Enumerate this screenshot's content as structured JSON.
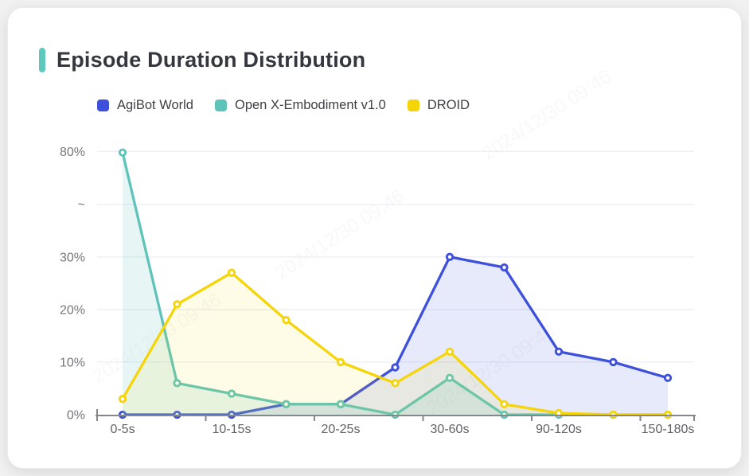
{
  "header": {
    "title": "Episode Duration Distribution",
    "accent_color": "#5fc8bc"
  },
  "legend": [
    {
      "label": "AgiBot World",
      "color": "#3d50db"
    },
    {
      "label": "Open X-Embodiment v1.0",
      "color": "#5ec4b9"
    },
    {
      "label": "DROID",
      "color": "#f5d50a"
    }
  ],
  "watermark": {
    "text": "2024/12/30 09:46",
    "opacity": 0.055
  },
  "chart_data": {
    "type": "line",
    "title": "Episode Duration Distribution",
    "x_axis": {
      "visible_tick_labels": [
        "0-5s",
        "10-15s",
        "20-25s",
        "30-60s",
        "90-120s",
        "150-180s"
      ],
      "note": "11 data points; axis labels shown under every second point (indices 0,2,4,6,8,10)",
      "num_points": 11
    },
    "y_axis": {
      "tick_labels": [
        "0%",
        "10%",
        "20%",
        "30%",
        "~",
        "80%"
      ],
      "tick_values": [
        0,
        10,
        20,
        30,
        null,
        80
      ],
      "break_symbol": "~",
      "break_between": [
        30,
        80
      ],
      "unit": "percent"
    },
    "grid": true,
    "legend_position": "top",
    "series": [
      {
        "name": "AgiBot World",
        "color": "#3d50db",
        "fill_opacity": 0.12,
        "values": [
          0,
          0,
          0,
          2,
          2,
          9,
          30,
          28,
          12,
          10,
          7
        ]
      },
      {
        "name": "Open X-Embodiment v1.0",
        "color": "#5ec4b9",
        "fill_opacity": 0.15,
        "values": [
          79.5,
          6,
          4,
          2,
          2,
          0,
          7,
          0,
          0,
          0,
          0
        ]
      },
      {
        "name": "DROID",
        "color": "#f5d50a",
        "fill_opacity": 0.1,
        "values": [
          3,
          21,
          27,
          18,
          10,
          6,
          12,
          2,
          0.3,
          0,
          0
        ]
      }
    ]
  }
}
